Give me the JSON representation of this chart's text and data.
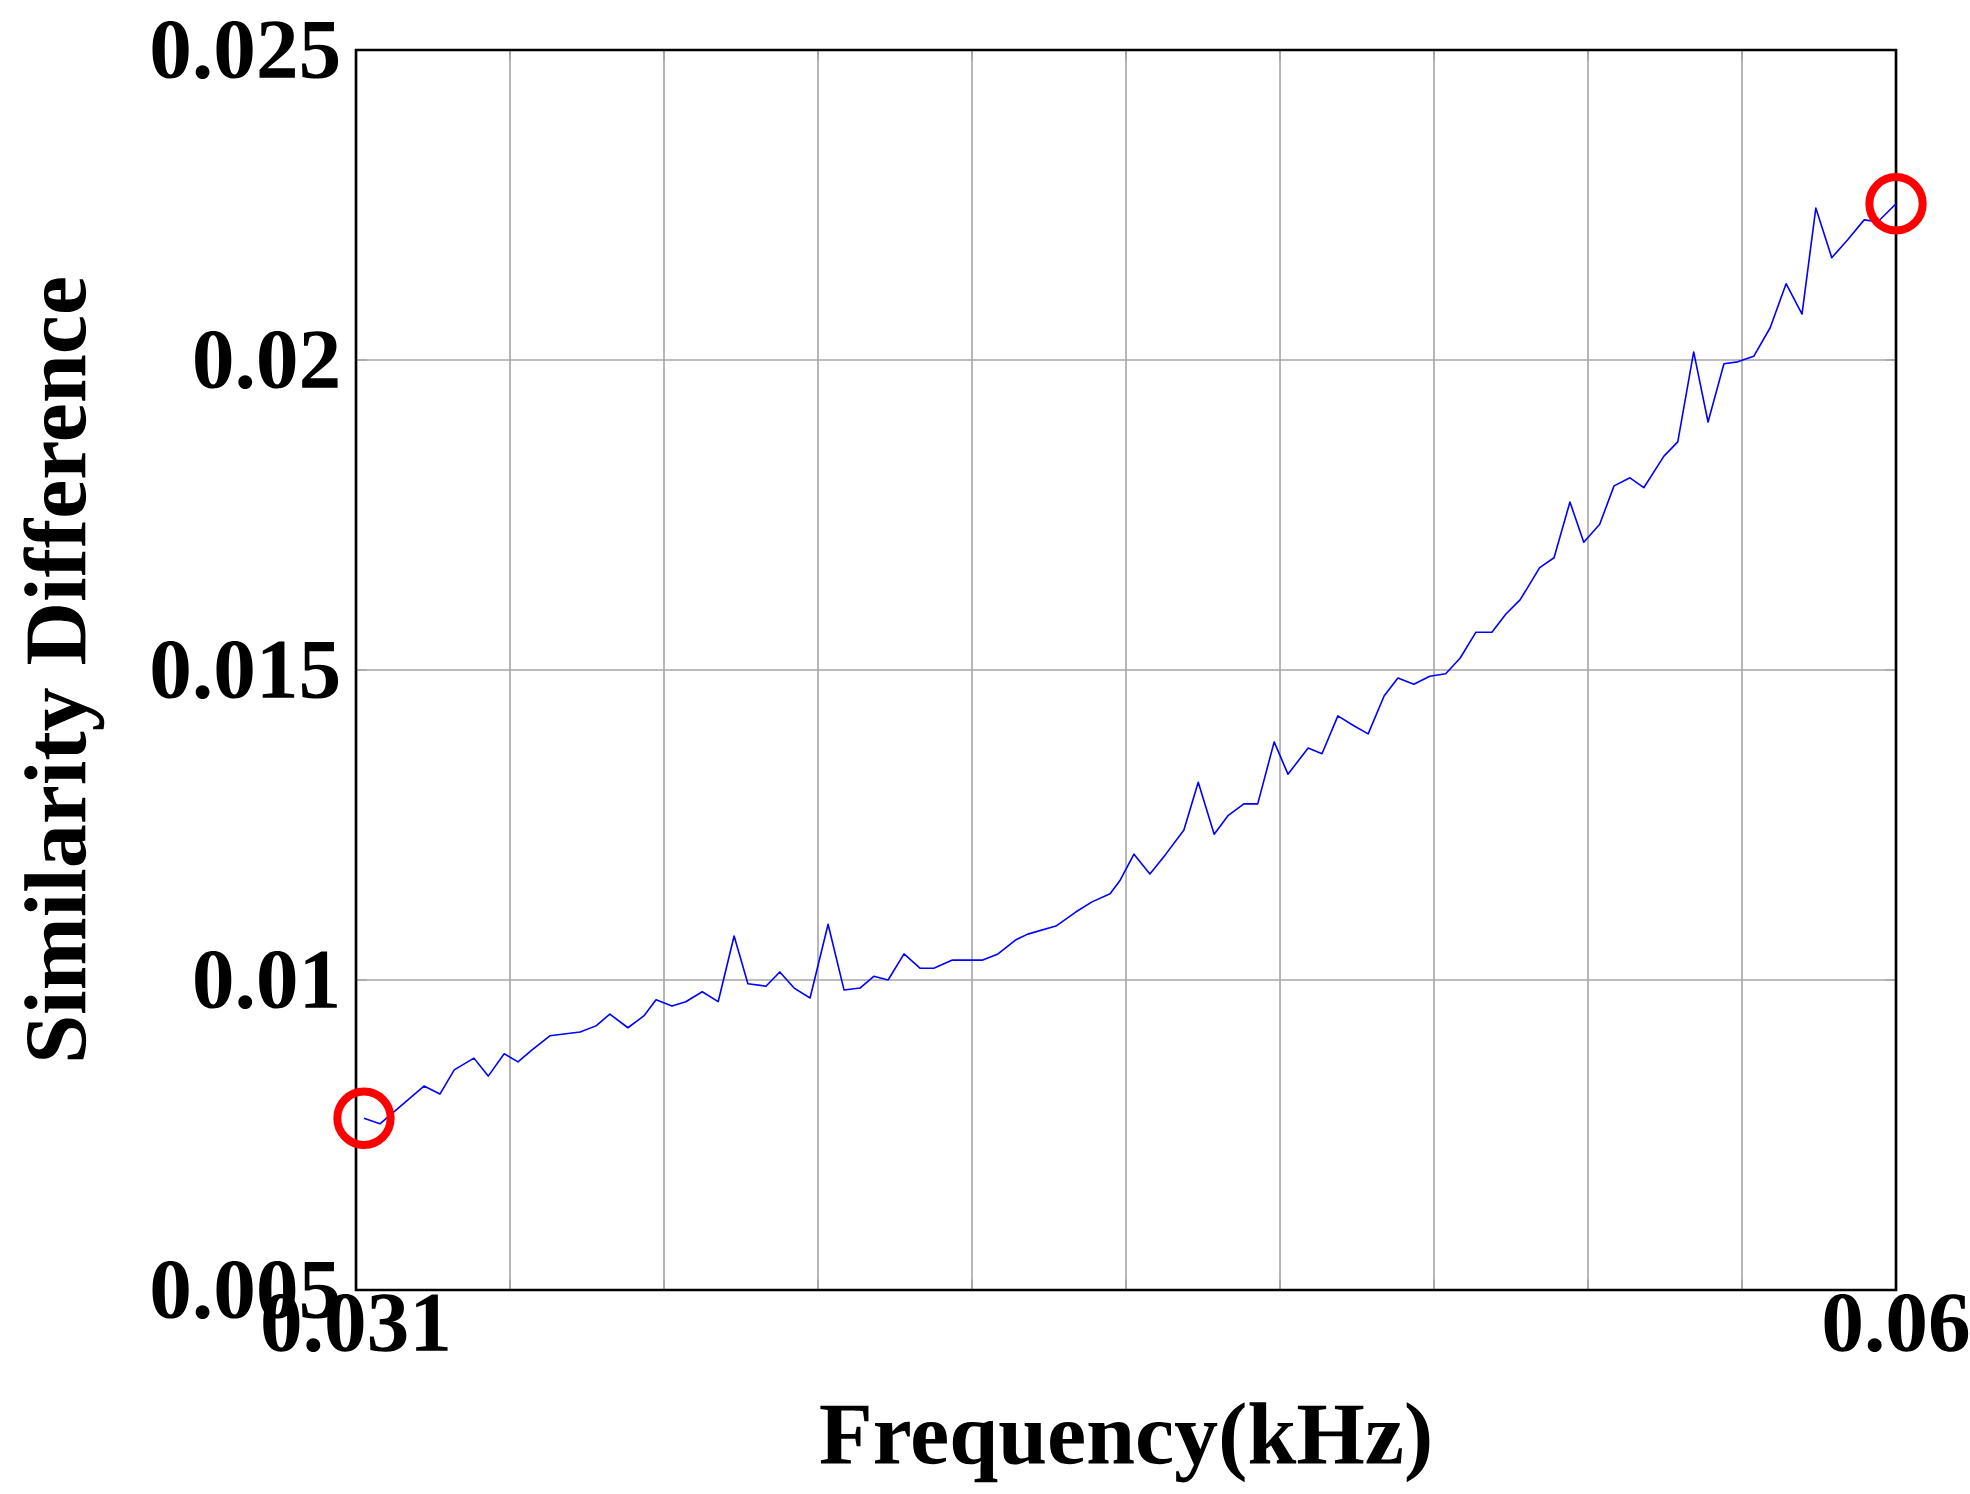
{
  "chart_data": {
    "type": "line",
    "xlabel": "Frequency(kHz)",
    "ylabel": "Similarity Difference",
    "x": [
      0.03115,
      0.03145,
      0.03228,
      0.03258,
      0.03285,
      0.03322,
      0.03349,
      0.03379,
      0.03405,
      0.03431,
      0.03465,
      0.03522,
      0.03552,
      0.03578,
      0.03612,
      0.03642,
      0.03665,
      0.03695,
      0.03721,
      0.03752,
      0.03782,
      0.03812,
      0.03838,
      0.03872,
      0.03898,
      0.03925,
      0.03955,
      0.03989,
      0.04019,
      0.04049,
      0.04075,
      0.04102,
      0.04132,
      0.04162,
      0.04188,
      0.04222,
      0.04279,
      0.04309,
      0.04343,
      0.04365,
      0.04418,
      0.04456,
      0.04486,
      0.0452,
      0.04539,
      0.04565,
      0.04595,
      0.04625,
      0.04659,
      0.04686,
      0.04716,
      0.04742,
      0.04772,
      0.04798,
      0.04829,
      0.04855,
      0.04893,
      0.04919,
      0.04949,
      0.04979,
      0.05006,
      0.05036,
      0.05062,
      0.05092,
      0.05122,
      0.05152,
      0.05179,
      0.05209,
      0.05239,
      0.05265,
      0.05292,
      0.05329,
      0.05356,
      0.05386,
      0.05412,
      0.05442,
      0.05469,
      0.05499,
      0.05525,
      0.05563,
      0.05589,
      0.05619,
      0.05646,
      0.05676,
      0.05702,
      0.05732,
      0.05763,
      0.05793,
      0.05823,
      0.05849,
      0.05879,
      0.05909,
      0.0594,
      0.05966,
      0.06
    ],
    "series": [
      {
        "color": "#0000ff",
        "values": [
          0.00777,
          0.00768,
          0.00829,
          0.00816,
          0.00855,
          0.00874,
          0.00845,
          0.00881,
          0.00868,
          0.00887,
          0.0091,
          0.00916,
          0.00926,
          0.00945,
          0.00923,
          0.00942,
          0.00968,
          0.00958,
          0.00965,
          0.00981,
          0.00965,
          0.01071,
          0.00994,
          0.0099,
          0.01013,
          0.00987,
          0.00971,
          0.0109,
          0.00984,
          0.00987,
          0.01006,
          0.01,
          0.01042,
          0.01019,
          0.01019,
          0.01032,
          0.01032,
          0.01042,
          0.01065,
          0.01074,
          0.01087,
          0.0111,
          0.01126,
          0.01139,
          0.01161,
          0.01203,
          0.01171,
          0.01203,
          0.01242,
          0.01319,
          0.01235,
          0.01265,
          0.01284,
          0.01284,
          0.01384,
          0.01332,
          0.01374,
          0.01365,
          0.01426,
          0.0141,
          0.01397,
          0.01458,
          0.01487,
          0.01477,
          0.0149,
          0.01494,
          0.01519,
          0.01561,
          0.01561,
          0.0159,
          0.01613,
          0.01665,
          0.01681,
          0.01771,
          0.01706,
          0.01735,
          0.01797,
          0.0181,
          0.01794,
          0.01845,
          0.01868,
          0.02013,
          0.019,
          0.01994,
          0.01997,
          0.02006,
          0.02052,
          0.02123,
          0.02074,
          0.02245,
          0.02165,
          0.02194,
          0.02226,
          0.02223,
          0.02252
        ]
      }
    ],
    "xlim": [
      0.031,
      0.06
    ],
    "ylim": [
      0.005,
      0.025
    ],
    "xticks": [
      0.031,
      {
        "value": 0.0339,
        "label": null
      },
      {
        "value": 0.0368,
        "label": null
      },
      {
        "value": 0.0397,
        "label": null
      },
      {
        "value": 0.0426,
        "label": null
      },
      {
        "value": 0.0455,
        "label": null
      },
      {
        "value": 0.0484,
        "label": null
      },
      {
        "value": 0.0513,
        "label": null
      },
      {
        "value": 0.0542,
        "label": null
      },
      {
        "value": 0.0571,
        "label": null
      },
      0.06
    ],
    "yticks": [
      0.005,
      0.01,
      0.015,
      0.02,
      0.025
    ],
    "grid": true
  }
}
